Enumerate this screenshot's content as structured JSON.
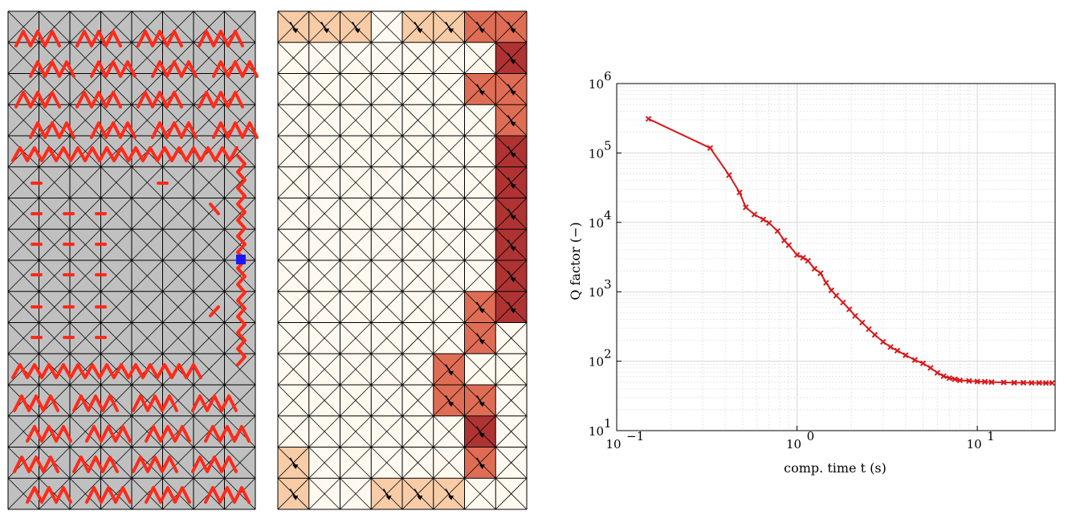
{
  "panels": {
    "mesh_grid": {
      "cols": 8,
      "rows": 16
    },
    "panel_a_colors": {
      "background": "#c0c0c0",
      "path": "#ff2a1a",
      "marker": "#1a1aff"
    },
    "panel_b_colors": {
      "low": "#fff7ec",
      "mid": "#ee8a5a",
      "high": "#a01010"
    }
  },
  "chart_data": {
    "type": "line",
    "title": "",
    "xlabel": "comp. time t (s)",
    "ylabel": "Q factor (−)",
    "xscale": "log",
    "yscale": "log",
    "xlim": [
      0.1,
      27
    ],
    "ylim": [
      10,
      1000000
    ],
    "grid": true,
    "x_ticks": [
      {
        "value": 0.1,
        "base": "10",
        "exp": "−1"
      },
      {
        "value": 1,
        "base": "10",
        "exp": "0"
      },
      {
        "value": 10,
        "base": "10",
        "exp": "1"
      }
    ],
    "y_ticks": [
      {
        "value": 10,
        "base": "10",
        "exp": "1"
      },
      {
        "value": 100,
        "base": "10",
        "exp": "2"
      },
      {
        "value": 1000,
        "base": "10",
        "exp": "3"
      },
      {
        "value": 10000,
        "base": "10",
        "exp": "4"
      },
      {
        "value": 100000,
        "base": "10",
        "exp": "5"
      },
      {
        "value": 1000000,
        "base": "10",
        "exp": "6"
      }
    ],
    "series_color": "#d7191c",
    "series": [
      {
        "x": [
          0.15,
          0.33,
          0.42,
          0.48,
          0.52,
          0.58,
          0.65,
          0.7,
          0.78,
          0.85,
          0.9,
          1.0,
          1.08,
          1.15,
          1.25,
          1.35,
          1.45,
          1.55,
          1.65,
          1.8,
          1.95,
          2.1,
          2.3,
          2.5,
          2.7,
          3.0,
          3.3,
          3.6,
          4.0,
          4.5,
          5.0,
          5.5,
          6.0,
          6.5,
          7.0,
          7.5,
          8.0,
          9.0,
          10.0,
          11.0,
          12.0,
          14.0,
          16.0,
          18.0,
          20.0,
          22.0,
          24.0,
          26.0
        ],
        "y": [
          310000,
          118000,
          48000,
          27000,
          16500,
          13000,
          11000,
          9800,
          7500,
          5500,
          4700,
          3400,
          3100,
          2800,
          2150,
          1850,
          1350,
          1050,
          880,
          700,
          560,
          450,
          360,
          290,
          240,
          190,
          160,
          142,
          122,
          104,
          93,
          80,
          68,
          61,
          57,
          55,
          53,
          52,
          51,
          50.5,
          50,
          49.5,
          49,
          49,
          48.8,
          48.7,
          48.6,
          48.6
        ]
      }
    ]
  }
}
